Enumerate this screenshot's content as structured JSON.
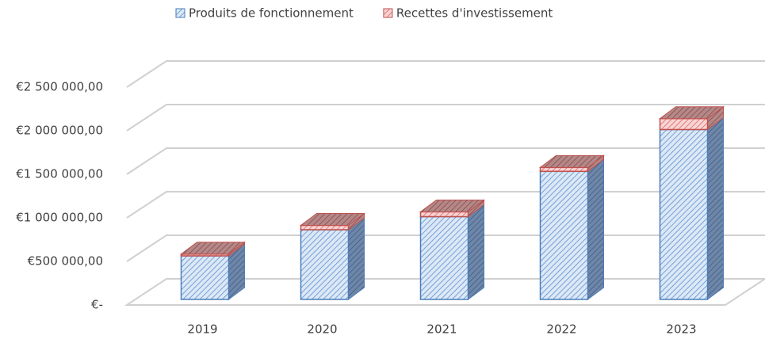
{
  "chart_data": {
    "type": "bar",
    "stacked": true,
    "categories": [
      "2019",
      "2020",
      "2021",
      "2022",
      "2023"
    ],
    "series": [
      {
        "name": "Produits de fonctionnement",
        "color": "#4a7ebb",
        "values": [
          500000,
          800000,
          950000,
          1470000,
          1950000
        ]
      },
      {
        "name": "Recettes d'investissement",
        "color": "#c0504d",
        "values": [
          20000,
          50000,
          55000,
          45000,
          125000
        ]
      }
    ],
    "ylim": [
      0,
      2500000
    ],
    "yticks": [
      {
        "value": 0,
        "label": "€-"
      },
      {
        "value": 500000,
        "label": "€500 000,00"
      },
      {
        "value": 1000000,
        "label": "€1 000 000,00"
      },
      {
        "value": 1500000,
        "label": "€1 500 000,00"
      },
      {
        "value": 2000000,
        "label": "€2 000 000,00"
      },
      {
        "value": 2500000,
        "label": "€2 500 000,00"
      }
    ],
    "grid": true,
    "legend": "top"
  }
}
